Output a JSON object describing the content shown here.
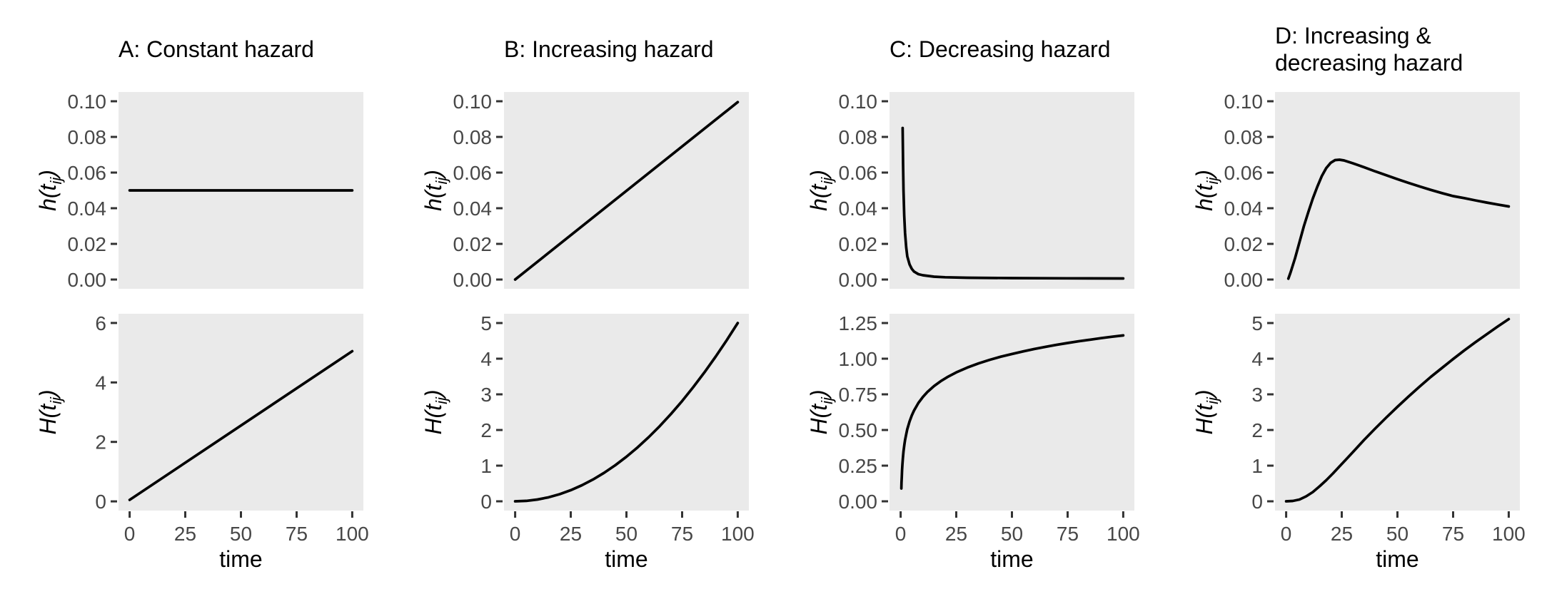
{
  "styles": {
    "panel_bg": "#EAEAEA",
    "curve_color": "#000000",
    "tick_color": "#333333",
    "tick_label_color": "#474747",
    "text_color": "#000000",
    "background": "#FFFFFF"
  },
  "chart_data": [
    {
      "type": "line",
      "title": "A: Constant hazard",
      "top": {
        "name": "hazard-constant",
        "ylabel_parts": [
          "h(t",
          "ij",
          ")"
        ],
        "ylim": [
          -0.0052,
          0.1052
        ],
        "yticks": [
          {
            "v": 0.0,
            "label": "0.00"
          },
          {
            "v": 0.02,
            "label": "0.02"
          },
          {
            "v": 0.04,
            "label": "0.04"
          },
          {
            "v": 0.06,
            "label": "0.06"
          },
          {
            "v": 0.08,
            "label": "0.08"
          },
          {
            "v": 0.1,
            "label": "0.10"
          }
        ],
        "xlim": [
          -5,
          105
        ],
        "points": [
          [
            0,
            0.05
          ],
          [
            100,
            0.05
          ]
        ]
      },
      "bottom": {
        "name": "cumhazard-constant",
        "ylabel_parts": [
          "H(t",
          "ij",
          ")"
        ],
        "ylim": [
          -0.31,
          6.31
        ],
        "yticks": [
          {
            "v": 0,
            "label": "0"
          },
          {
            "v": 2,
            "label": "2"
          },
          {
            "v": 4,
            "label": "4"
          },
          {
            "v": 6,
            "label": "6"
          }
        ],
        "xlim": [
          -5,
          105
        ],
        "xticks": [
          {
            "v": 0,
            "label": "0"
          },
          {
            "v": 25,
            "label": "25"
          },
          {
            "v": 50,
            "label": "50"
          },
          {
            "v": 75,
            "label": "75"
          },
          {
            "v": 100,
            "label": "100"
          }
        ],
        "xlabel": "time",
        "points": [
          [
            0,
            0.05
          ],
          [
            100,
            5.05
          ]
        ]
      }
    },
    {
      "type": "line",
      "title": "B: Increasing hazard",
      "top": {
        "name": "hazard-increasing",
        "ylabel_parts": [
          "h(t",
          "ij",
          ")"
        ],
        "ylim": [
          -0.0052,
          0.1052
        ],
        "yticks": [
          {
            "v": 0.0,
            "label": "0.00"
          },
          {
            "v": 0.02,
            "label": "0.02"
          },
          {
            "v": 0.04,
            "label": "0.04"
          },
          {
            "v": 0.06,
            "label": "0.06"
          },
          {
            "v": 0.08,
            "label": "0.08"
          },
          {
            "v": 0.1,
            "label": "0.10"
          }
        ],
        "xlim": [
          -5,
          105
        ],
        "points": [
          [
            0,
            0
          ],
          [
            100,
            0.0995
          ]
        ]
      },
      "bottom": {
        "name": "cumhazard-increasing",
        "ylabel_parts": [
          "H(t",
          "ij",
          ")"
        ],
        "ylim": [
          -0.26,
          5.26
        ],
        "yticks": [
          {
            "v": 0,
            "label": "0"
          },
          {
            "v": 1,
            "label": "1"
          },
          {
            "v": 2,
            "label": "2"
          },
          {
            "v": 3,
            "label": "3"
          },
          {
            "v": 4,
            "label": "4"
          },
          {
            "v": 5,
            "label": "5"
          }
        ],
        "xlim": [
          -5,
          105
        ],
        "xticks": [
          {
            "v": 0,
            "label": "0"
          },
          {
            "v": 25,
            "label": "25"
          },
          {
            "v": 50,
            "label": "50"
          },
          {
            "v": 75,
            "label": "75"
          },
          {
            "v": 100,
            "label": "100"
          }
        ],
        "xlabel": "time",
        "points": [
          [
            0,
            0
          ],
          [
            5,
            0.0125
          ],
          [
            10,
            0.05
          ],
          [
            15,
            0.1125
          ],
          [
            20,
            0.2
          ],
          [
            25,
            0.3125
          ],
          [
            30,
            0.45
          ],
          [
            35,
            0.6125
          ],
          [
            40,
            0.8
          ],
          [
            45,
            1.0125
          ],
          [
            50,
            1.25
          ],
          [
            55,
            1.5125
          ],
          [
            60,
            1.8
          ],
          [
            65,
            2.1125
          ],
          [
            70,
            2.45
          ],
          [
            75,
            2.8125
          ],
          [
            80,
            3.2
          ],
          [
            85,
            3.6125
          ],
          [
            90,
            4.05
          ],
          [
            95,
            4.5125
          ],
          [
            100,
            5.0
          ]
        ]
      }
    },
    {
      "type": "line",
      "title": "C: Decreasing hazard",
      "top": {
        "name": "hazard-decreasing",
        "ylabel_parts": [
          "h(t",
          "ij",
          ")"
        ],
        "ylim": [
          -0.0052,
          0.1052
        ],
        "yticks": [
          {
            "v": 0.0,
            "label": "0.00"
          },
          {
            "v": 0.02,
            "label": "0.02"
          },
          {
            "v": 0.04,
            "label": "0.04"
          },
          {
            "v": 0.06,
            "label": "0.06"
          },
          {
            "v": 0.08,
            "label": "0.08"
          },
          {
            "v": 0.1,
            "label": "0.10"
          }
        ],
        "xlim": [
          -5,
          105
        ],
        "points": [
          [
            0.9,
            0.085
          ],
          [
            1.0,
            0.075
          ],
          [
            1.1,
            0.065
          ],
          [
            1.3,
            0.05
          ],
          [
            1.6,
            0.036
          ],
          [
            2,
            0.026
          ],
          [
            2.5,
            0.018
          ],
          [
            3,
            0.013
          ],
          [
            4,
            0.0085
          ],
          [
            5,
            0.006
          ],
          [
            6,
            0.0045
          ],
          [
            8,
            0.003
          ],
          [
            10,
            0.0024
          ],
          [
            15,
            0.0016
          ],
          [
            20,
            0.0013
          ],
          [
            30,
            0.001
          ],
          [
            50,
            0.0008
          ],
          [
            75,
            0.0007
          ],
          [
            100,
            0.0006
          ]
        ]
      },
      "bottom": {
        "name": "cumhazard-decreasing",
        "ylabel_parts": [
          "H(t",
          "ij",
          ")"
        ],
        "ylim": [
          -0.065,
          1.315
        ],
        "yticks": [
          {
            "v": 0.0,
            "label": "0.00"
          },
          {
            "v": 0.25,
            "label": "0.25"
          },
          {
            "v": 0.5,
            "label": "0.50"
          },
          {
            "v": 0.75,
            "label": "0.75"
          },
          {
            "v": 1.0,
            "label": "1.00"
          },
          {
            "v": 1.25,
            "label": "1.25"
          }
        ],
        "xlim": [
          -5,
          105
        ],
        "xticks": [
          {
            "v": 0,
            "label": "0"
          },
          {
            "v": 25,
            "label": "25"
          },
          {
            "v": 50,
            "label": "50"
          },
          {
            "v": 75,
            "label": "75"
          },
          {
            "v": 100,
            "label": "100"
          }
        ],
        "xlabel": "time",
        "points": [
          [
            0.33,
            0.09
          ],
          [
            0.4,
            0.13
          ],
          [
            0.5,
            0.17
          ],
          [
            0.65,
            0.22
          ],
          [
            0.8,
            0.26
          ],
          [
            1,
            0.3
          ],
          [
            1.3,
            0.35
          ],
          [
            1.7,
            0.4
          ],
          [
            2,
            0.43
          ],
          [
            2.5,
            0.47
          ],
          [
            3,
            0.506
          ],
          [
            4,
            0.56
          ],
          [
            5,
            0.602
          ],
          [
            6,
            0.636
          ],
          [
            8,
            0.69
          ],
          [
            10,
            0.732
          ],
          [
            12,
            0.766
          ],
          [
            15,
            0.808
          ],
          [
            18,
            0.842
          ],
          [
            21,
            0.871
          ],
          [
            25,
            0.904
          ],
          [
            30,
            0.938
          ],
          [
            35,
            0.967
          ],
          [
            40,
            0.992
          ],
          [
            45,
            1.014
          ],
          [
            50,
            1.033
          ],
          [
            55,
            1.051
          ],
          [
            60,
            1.068
          ],
          [
            65,
            1.083
          ],
          [
            70,
            1.097
          ],
          [
            75,
            1.11
          ],
          [
            80,
            1.122
          ],
          [
            85,
            1.133
          ],
          [
            90,
            1.144
          ],
          [
            95,
            1.154
          ],
          [
            100,
            1.163
          ]
        ]
      }
    },
    {
      "type": "line",
      "title": "D: Increasing &\n decreasing hazard",
      "top": {
        "name": "hazard-increasing-decreasing",
        "ylabel_parts": [
          "h(t",
          "ij",
          ")"
        ],
        "ylim": [
          -0.0052,
          0.1052
        ],
        "yticks": [
          {
            "v": 0.0,
            "label": "0.00"
          },
          {
            "v": 0.02,
            "label": "0.02"
          },
          {
            "v": 0.04,
            "label": "0.04"
          },
          {
            "v": 0.06,
            "label": "0.06"
          },
          {
            "v": 0.08,
            "label": "0.08"
          },
          {
            "v": 0.1,
            "label": "0.10"
          }
        ],
        "xlim": [
          -5,
          105
        ],
        "points": [
          [
            1,
            0.0005
          ],
          [
            2,
            0.004
          ],
          [
            4,
            0.012
          ],
          [
            6,
            0.021
          ],
          [
            8,
            0.03
          ],
          [
            10,
            0.038
          ],
          [
            12,
            0.0455
          ],
          [
            14,
            0.052
          ],
          [
            16,
            0.058
          ],
          [
            18,
            0.0625
          ],
          [
            20,
            0.0655
          ],
          [
            22,
            0.067
          ],
          [
            24,
            0.0672
          ],
          [
            26,
            0.0668
          ],
          [
            28,
            0.066
          ],
          [
            30,
            0.0652
          ],
          [
            35,
            0.063
          ],
          [
            40,
            0.0607
          ],
          [
            45,
            0.0585
          ],
          [
            50,
            0.0563
          ],
          [
            55,
            0.0542
          ],
          [
            60,
            0.0522
          ],
          [
            65,
            0.0503
          ],
          [
            70,
            0.0485
          ],
          [
            75,
            0.0468
          ],
          [
            80,
            0.0457
          ],
          [
            85,
            0.0444
          ],
          [
            90,
            0.0432
          ],
          [
            95,
            0.0421
          ],
          [
            100,
            0.041
          ]
        ]
      },
      "bottom": {
        "name": "cumhazard-increasing-decreasing",
        "ylabel_parts": [
          "H(t",
          "ij",
          ")"
        ],
        "ylim": [
          -0.26,
          5.26
        ],
        "yticks": [
          {
            "v": 0,
            "label": "0"
          },
          {
            "v": 1,
            "label": "1"
          },
          {
            "v": 2,
            "label": "2"
          },
          {
            "v": 3,
            "label": "3"
          },
          {
            "v": 4,
            "label": "4"
          },
          {
            "v": 5,
            "label": "5"
          }
        ],
        "xlim": [
          -5,
          105
        ],
        "xticks": [
          {
            "v": 0,
            "label": "0"
          },
          {
            "v": 25,
            "label": "25"
          },
          {
            "v": 50,
            "label": "50"
          },
          {
            "v": 75,
            "label": "75"
          },
          {
            "v": 100,
            "label": "100"
          }
        ],
        "xlabel": "time",
        "points": [
          [
            0,
            0
          ],
          [
            3,
            0.01
          ],
          [
            6,
            0.05
          ],
          [
            9,
            0.14
          ],
          [
            12,
            0.26
          ],
          [
            15,
            0.42
          ],
          [
            18,
            0.59
          ],
          [
            21,
            0.78
          ],
          [
            24,
            0.98
          ],
          [
            27,
            1.18
          ],
          [
            30,
            1.38
          ],
          [
            35,
            1.72
          ],
          [
            40,
            2.04
          ],
          [
            45,
            2.35
          ],
          [
            50,
            2.65
          ],
          [
            55,
            2.94
          ],
          [
            60,
            3.22
          ],
          [
            65,
            3.49
          ],
          [
            70,
            3.74
          ],
          [
            75,
            3.99
          ],
          [
            80,
            4.23
          ],
          [
            85,
            4.46
          ],
          [
            90,
            4.68
          ],
          [
            95,
            4.9
          ],
          [
            100,
            5.11
          ]
        ]
      }
    }
  ]
}
